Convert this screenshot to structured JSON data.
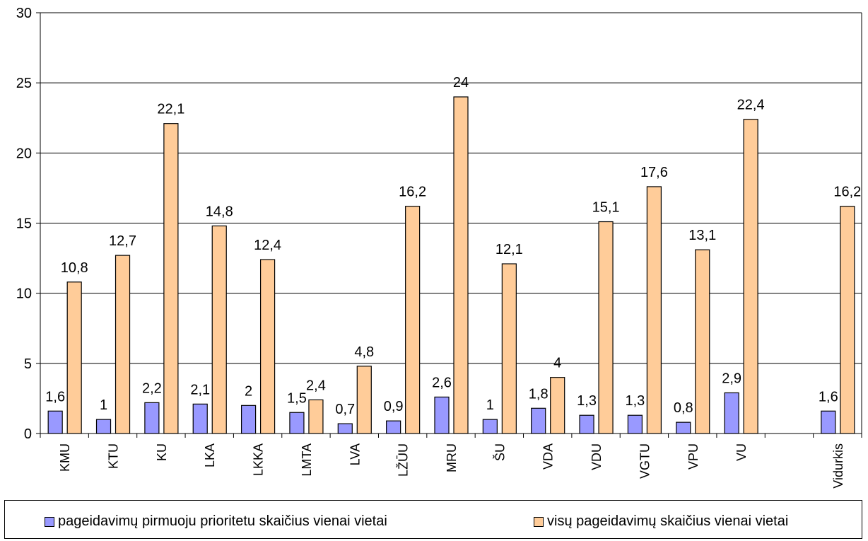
{
  "chart_data": {
    "type": "bar",
    "title": "",
    "xlabel": "",
    "ylabel": "",
    "ylim": [
      0,
      30
    ],
    "yticks": [
      0,
      5,
      10,
      15,
      20,
      25,
      30
    ],
    "grid": true,
    "legend_position": "bottom",
    "categories": [
      "KMU",
      "KTU",
      "KU",
      "LKA",
      "LKKA",
      "LMTA",
      "LVA",
      "LŽŪU",
      "MRU",
      "ŠU",
      "VDA",
      "VDU",
      "VGTU",
      "VPU",
      "VU",
      "",
      "Vidurkis"
    ],
    "series": [
      {
        "name": "pageidavimų pirmuoju prioritetu skaičius vienai vietai",
        "color": "#9999ff",
        "values": [
          1.6,
          1,
          2.2,
          2.1,
          2,
          1.5,
          0.7,
          0.9,
          2.6,
          1,
          1.8,
          1.3,
          1.3,
          0.8,
          2.9,
          null,
          1.6
        ],
        "labels": [
          "1,6",
          "1",
          "2,2",
          "2,1",
          "2",
          "1,5",
          "0,7",
          "0,9",
          "2,6",
          "1",
          "1,8",
          "1,3",
          "1,3",
          "0,8",
          "2,9",
          "",
          "1,6"
        ]
      },
      {
        "name": "visų pageidavimų skaičius vienai vietai",
        "color": "#ffcc99",
        "values": [
          10.8,
          12.7,
          22.1,
          14.8,
          12.4,
          2.4,
          4.8,
          16.2,
          24,
          12.1,
          4,
          15.1,
          17.6,
          13.1,
          22.4,
          null,
          16.2
        ],
        "labels": [
          "10,8",
          "12,7",
          "22,1",
          "14,8",
          "12,4",
          "2,4",
          "4,8",
          "16,2",
          "24",
          "12,1",
          "4",
          "15,1",
          "17,6",
          "13,1",
          "22,4",
          "",
          "16,2"
        ]
      }
    ]
  }
}
